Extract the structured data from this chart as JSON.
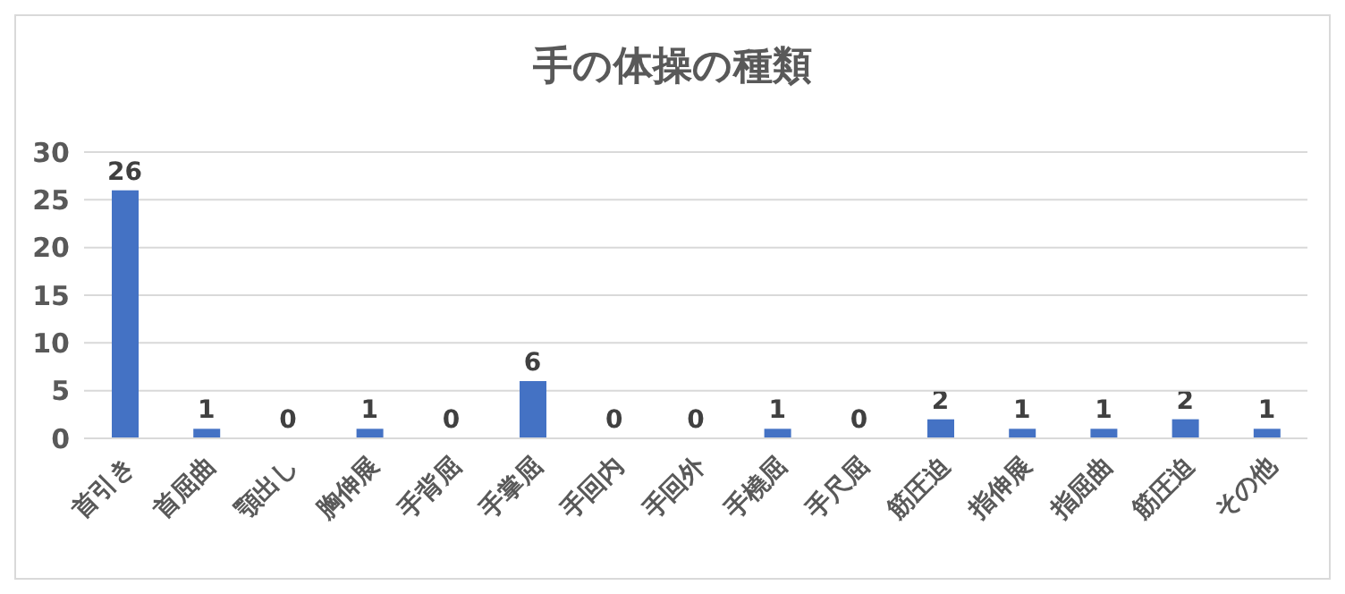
{
  "chart_data": {
    "type": "bar",
    "title": "手の体操の種類",
    "categories": [
      "首引き",
      "首屈曲",
      "顎出し",
      "胸伸展",
      "手背屈",
      "手掌屈",
      "手回内",
      "手回外",
      "手橈屈",
      "手尺屈",
      "筋圧迫",
      "指伸展",
      "指屈曲",
      "筋圧迫",
      "その他"
    ],
    "values": [
      26,
      1,
      0,
      1,
      0,
      6,
      0,
      0,
      1,
      0,
      2,
      1,
      1,
      2,
      1
    ],
    "color": "#4472c4",
    "ylim": [
      0,
      30
    ],
    "yticks": [
      0,
      5,
      10,
      15,
      20,
      25,
      30
    ],
    "grid": "y",
    "data_labels": true,
    "legend": false
  }
}
